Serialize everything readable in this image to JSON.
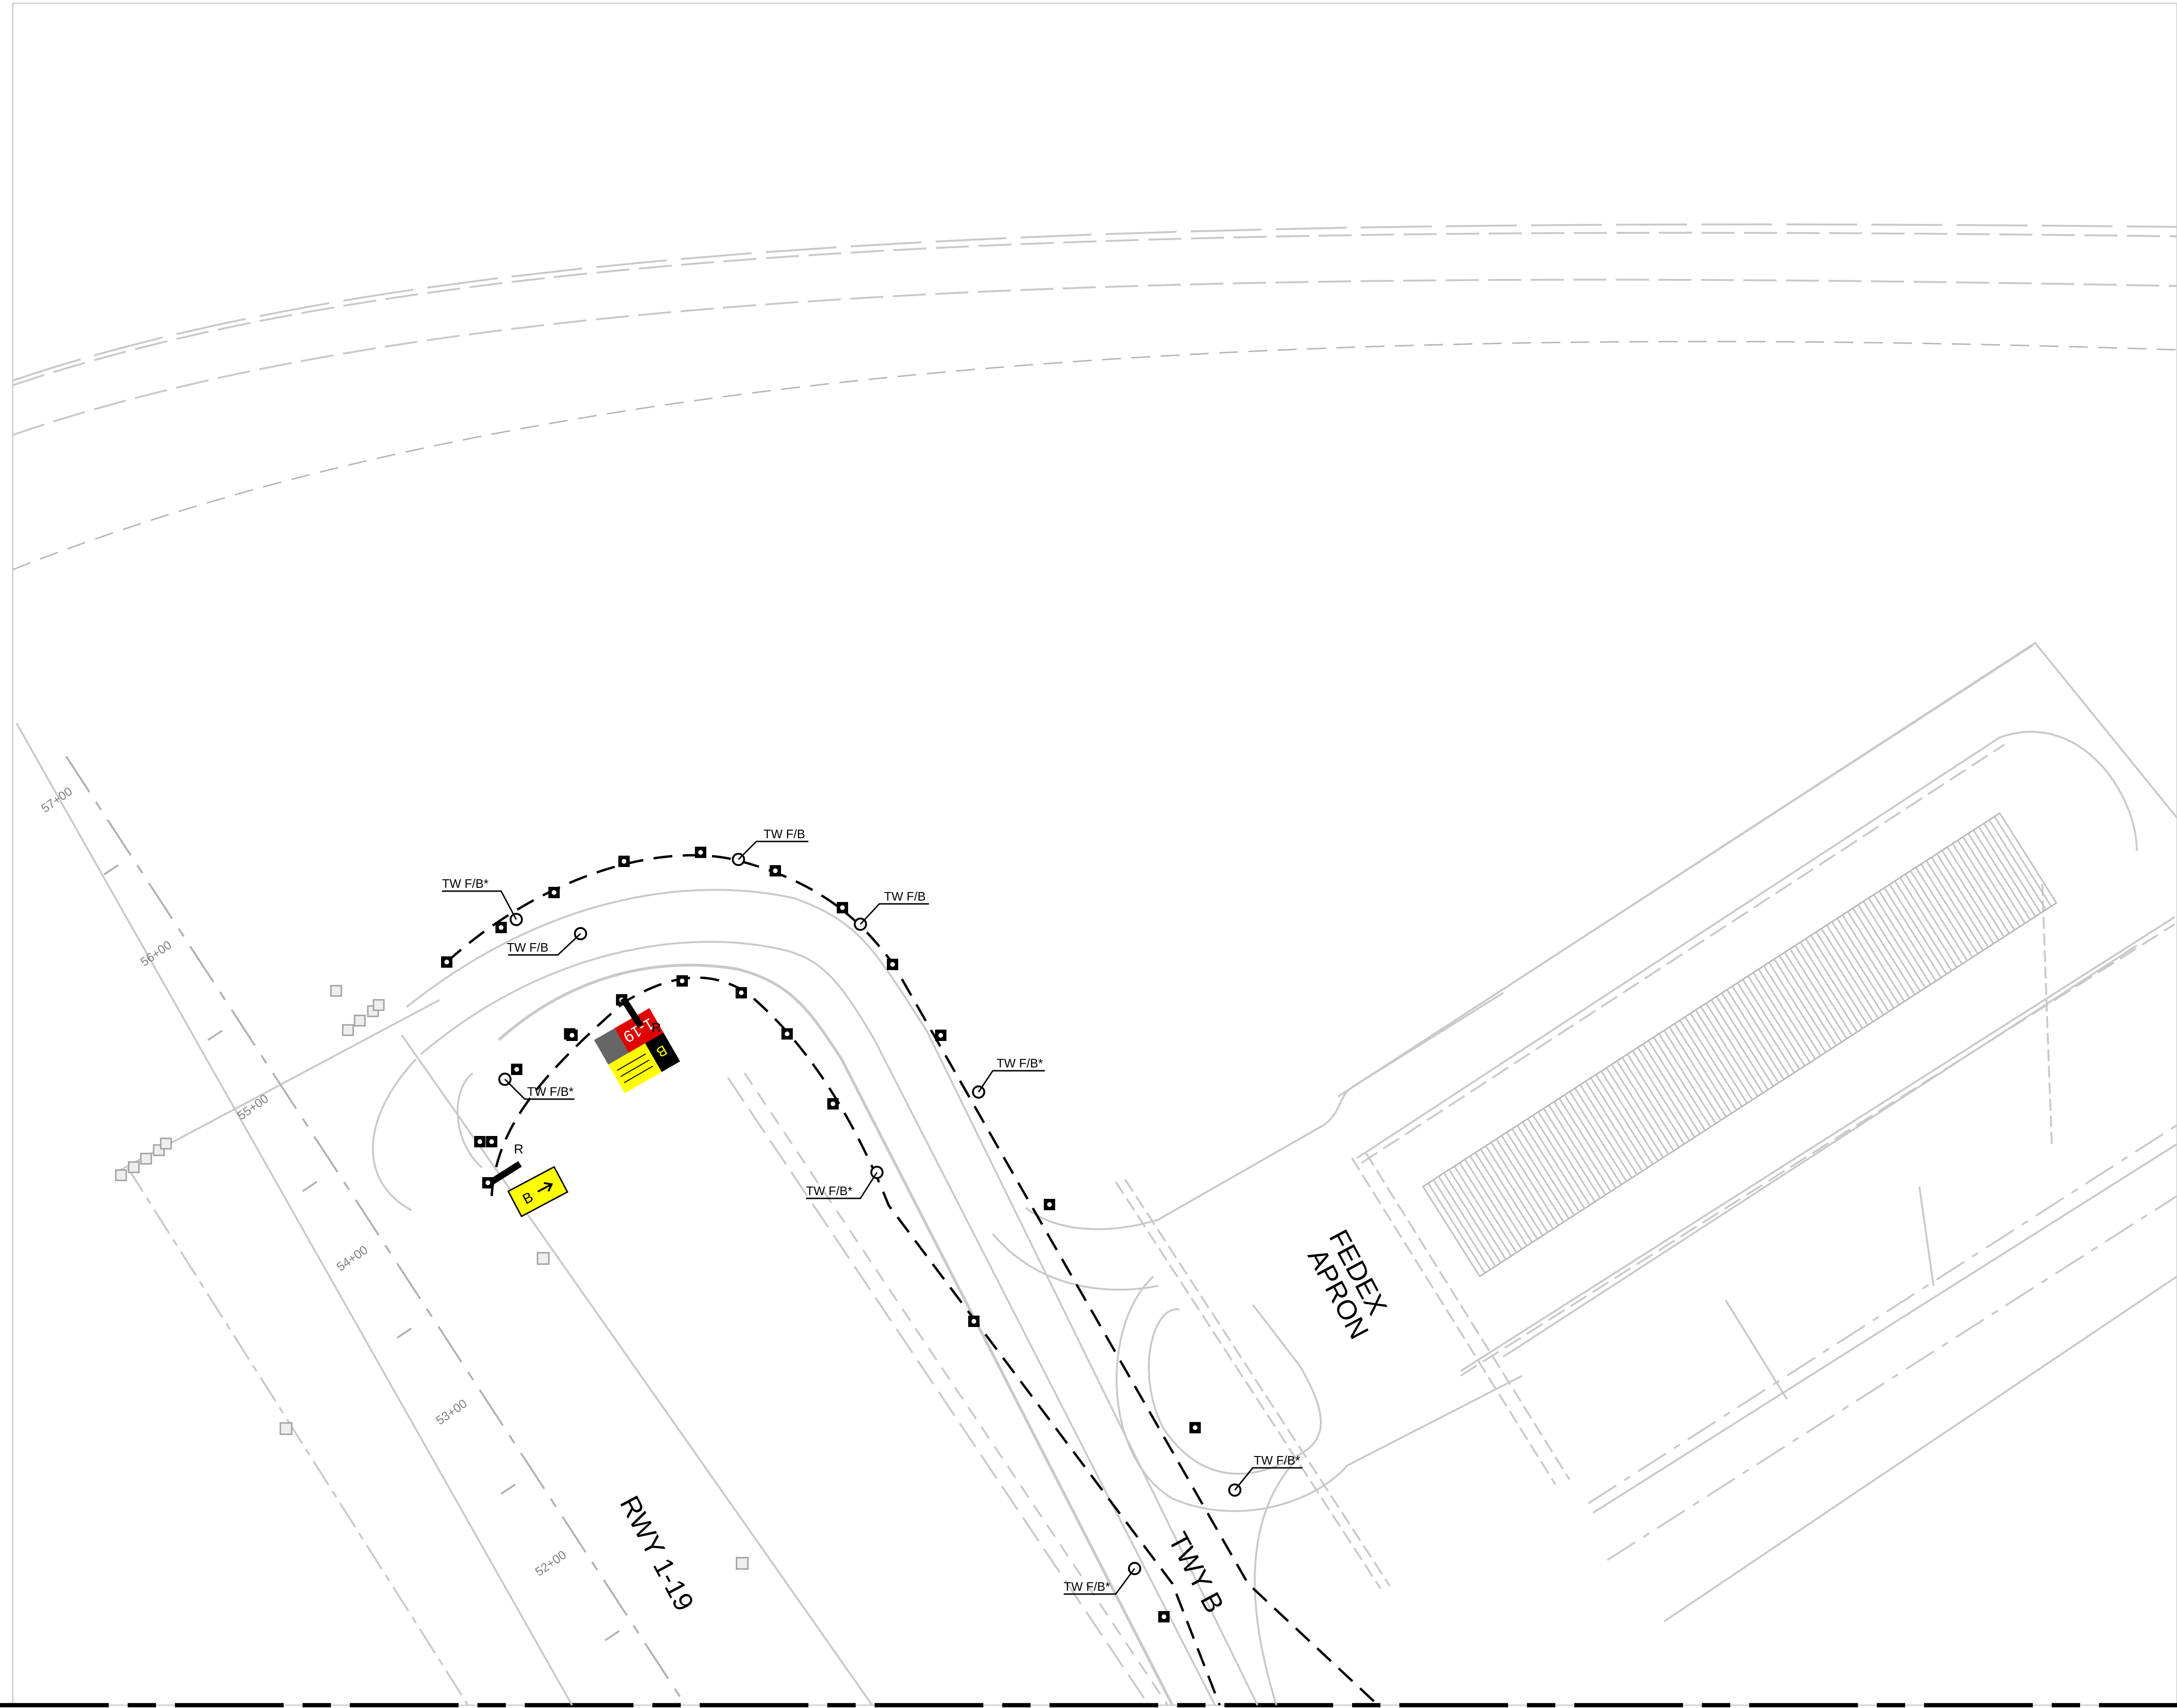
{
  "areas": {
    "runway": "RWY 1-19",
    "taxiway": "TWY B",
    "apron_line1": "FEDEX",
    "apron_line2": "APRON"
  },
  "stations": [
    "57+00",
    "56+00",
    "55+00",
    "54+00",
    "53+00",
    "52+00"
  ],
  "fixture_labels": {
    "tw_fb": "TW F/B",
    "tw_fb_star": "TW F/B*"
  },
  "signs": {
    "runway_sign_text": "1-19",
    "location_sign_text": "B",
    "direction_sign_text": "B",
    "side_marker": "R"
  },
  "colors": {
    "line_gray": "#c9c9c9",
    "line_dark": "#000000",
    "sign_red": "#e00000",
    "sign_yellow": "#ffff00"
  }
}
